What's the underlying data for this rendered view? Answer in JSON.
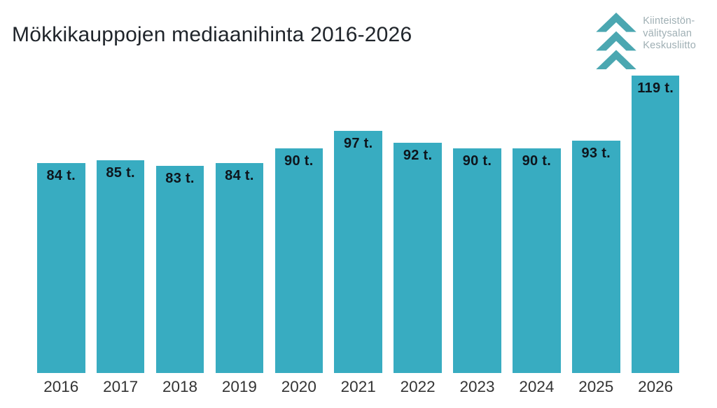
{
  "title": "Mökkikauppojen mediaanihinta 2016-2026",
  "logo": {
    "org_name": "Kiinteistönvälitysalan Keskusliitto",
    "lines": [
      "Kiinteistön-",
      "välitysalan",
      "Keskusliitto"
    ],
    "chevron_color": "#4ba7b1",
    "text_color": "#9fafb4"
  },
  "colors": {
    "background": "#ffffff",
    "bar": "#38acc1",
    "value_label": "#0e151c",
    "year_label": "#333333",
    "title": "#20252b"
  },
  "chart_data": {
    "type": "bar",
    "title": "Mökkikauppojen mediaanihinta 2016-2026",
    "categories": [
      "2016",
      "2017",
      "2018",
      "2019",
      "2020",
      "2021",
      "2022",
      "2023",
      "2024",
      "2025",
      "2026"
    ],
    "values": [
      84,
      85,
      83,
      84,
      90,
      97,
      92,
      90,
      90,
      93,
      119
    ],
    "value_labels": [
      "84 t.",
      "85 t.",
      "83 t.",
      "84 t.",
      "90 t.",
      "97 t.",
      "92 t.",
      "90 t.",
      "90 t.",
      "93 t.",
      "119 t."
    ],
    "unit": "t.",
    "xlabel": "",
    "ylabel": "",
    "ylim": [
      0,
      119
    ],
    "grid": false,
    "legend": false,
    "axis_lines": false,
    "bar_color": "#38acc1",
    "value_label_position": "inside-top"
  }
}
